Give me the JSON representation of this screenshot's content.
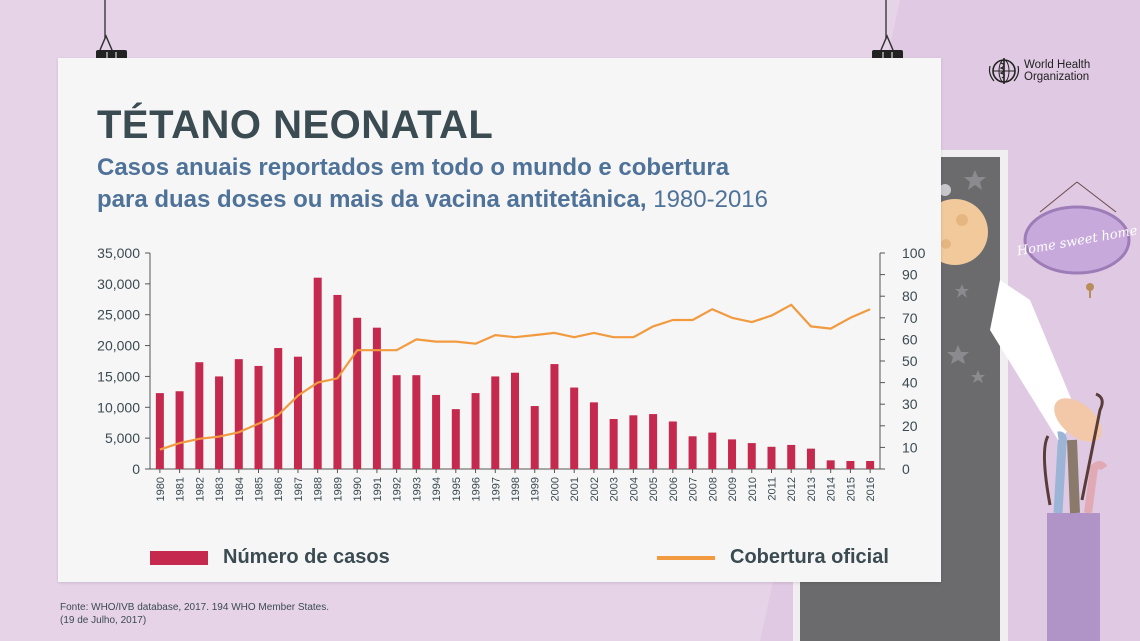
{
  "header": {
    "title": "TÉTANO NEONATAL",
    "subtitle_line1": "Casos anuais reportados em todo o mundo e cobertura",
    "subtitle_line2": "para duas doses ou mais da vacina antitetânica,",
    "subtitle_years": "1980-2016"
  },
  "source": {
    "line1": "Fonte: WHO/IVB database, 2017. 194 WHO Member States.",
    "line2": "(19 de Julho, 2017)"
  },
  "logo": {
    "line1": "World Health",
    "line2": "Organization",
    "icon": "who-globe-icon"
  },
  "decor": {
    "sign_text": "Home sweet home"
  },
  "colors": {
    "bar": "#c6294e",
    "line": "#f29a3f",
    "title": "#3b4b52",
    "subtitle": "#4f7299"
  },
  "chart_data": {
    "type": "bar+line",
    "categories": [
      "1980",
      "1981",
      "1982",
      "1983",
      "1984",
      "1985",
      "1986",
      "1987",
      "1988",
      "1989",
      "1990",
      "1991",
      "1992",
      "1993",
      "1994",
      "1995",
      "1996",
      "1997",
      "1998",
      "1999",
      "2000",
      "2001",
      "2002",
      "2003",
      "2004",
      "2005",
      "2006",
      "2007",
      "2008",
      "2009",
      "2010",
      "2011",
      "2012",
      "2013",
      "2014",
      "2015",
      "2016"
    ],
    "series": [
      {
        "name": "Número de casos",
        "type": "bar",
        "axis": "left",
        "values": [
          12300,
          12600,
          17300,
          15000,
          17800,
          16700,
          19600,
          18200,
          31000,
          28200,
          24500,
          22900,
          15200,
          15200,
          12000,
          9700,
          12300,
          15000,
          15600,
          10200,
          17000,
          13200,
          10800,
          8100,
          8700,
          8900,
          7700,
          5300,
          5900,
          4800,
          4200,
          3600,
          3900,
          3300,
          1400,
          1300,
          1300
        ]
      },
      {
        "name": "Cobertura oficial",
        "type": "line",
        "axis": "right",
        "values": [
          9,
          12,
          14,
          15,
          17,
          21,
          25,
          34,
          40,
          42,
          55,
          55,
          55,
          60,
          59,
          59,
          58,
          62,
          61,
          62,
          63,
          61,
          63,
          61,
          61,
          66,
          69,
          69,
          74,
          70,
          68,
          71,
          76,
          66,
          65,
          70,
          74
        ]
      }
    ],
    "y_left": {
      "min": 0,
      "max": 35000,
      "ticks": [
        "0",
        "5,000",
        "10,000",
        "15,000",
        "20,000",
        "25,000",
        "30,000",
        "35,000"
      ]
    },
    "y_right": {
      "min": 0,
      "max": 100,
      "ticks": [
        "0",
        "10",
        "20",
        "30",
        "40",
        "50",
        "60",
        "70",
        "80",
        "90",
        "100"
      ]
    },
    "grid": false,
    "legend": "bottom"
  }
}
